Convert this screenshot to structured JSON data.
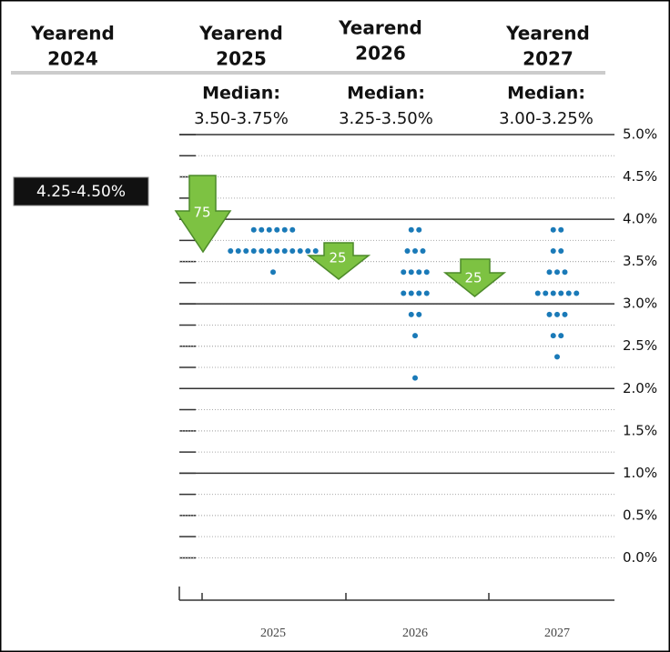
{
  "chart_data": {
    "type": "dot",
    "headers": [
      [
        "Yearend",
        "2024"
      ],
      [
        "Yearend",
        "2025"
      ],
      [
        "Yearend",
        "2026"
      ],
      [
        "Yearend",
        "2027"
      ]
    ],
    "current_rate": "4.25-4.50%",
    "medians": [
      [
        "Median:",
        "3.50-3.75%"
      ],
      [
        "Median:",
        "3.25-3.50%"
      ],
      [
        "Median:",
        "3.00-3.25%"
      ]
    ],
    "arrows": [
      75,
      25,
      25
    ],
    "categories": [
      "2025",
      "2026",
      "2027"
    ],
    "dots": [
      {
        "levels": [
          3.875,
          3.625,
          3.375
        ],
        "counts": [
          6,
          12,
          1
        ]
      },
      {
        "levels": [
          3.875,
          3.625,
          3.375,
          3.125,
          2.875,
          2.625,
          2.125
        ],
        "counts": [
          2,
          3,
          4,
          4,
          2,
          1,
          1
        ]
      },
      {
        "levels": [
          3.875,
          3.625,
          3.375,
          3.125,
          2.875,
          2.625,
          2.375
        ],
        "counts": [
          2,
          2,
          3,
          6,
          3,
          2,
          1
        ]
      }
    ],
    "color": "#1a7ab8",
    "arrow_color": "#7dc242",
    "ylim": [
      -0.5,
      5.0
    ],
    "yticks": [
      {
        "value": 5.0,
        "label": "5.0%"
      },
      {
        "value": 4.5,
        "label": "4.5%"
      },
      {
        "value": 4.0,
        "label": "4.0%"
      },
      {
        "value": 3.5,
        "label": "3.5%"
      },
      {
        "value": 3.0,
        "label": "3.0%"
      },
      {
        "value": 2.5,
        "label": "2.5%"
      },
      {
        "value": 2.0,
        "label": "2.0%"
      },
      {
        "value": 1.5,
        "label": "1.5%"
      },
      {
        "value": 1.0,
        "label": "1.0%"
      },
      {
        "value": 0.5,
        "label": "0.5%"
      },
      {
        "value": 0.0,
        "label": "0.0%"
      }
    ]
  }
}
